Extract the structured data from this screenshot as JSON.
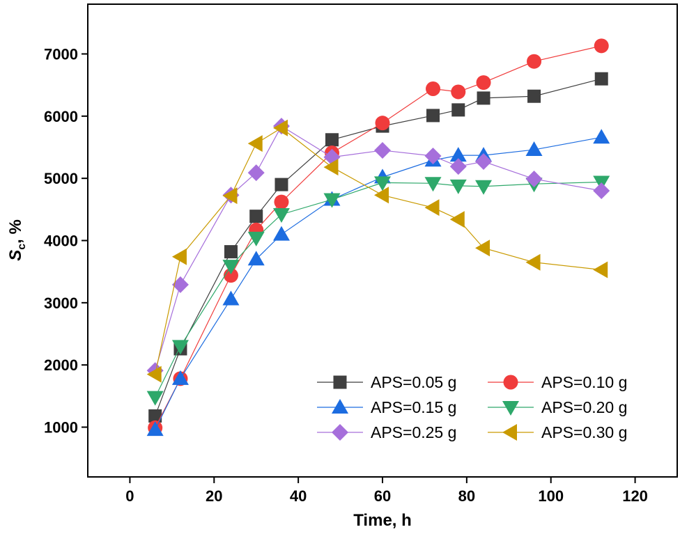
{
  "chart_data": {
    "type": "line",
    "xlabel": "Time, h",
    "ylabel_main": "S",
    "ylabel_sub": "c",
    "ylabel_suffix": ", %",
    "xlim": [
      -10,
      130
    ],
    "ylim": [
      200,
      7800
    ],
    "xticks": [
      0,
      20,
      40,
      60,
      80,
      100,
      120
    ],
    "yticks": [
      1000,
      2000,
      3000,
      4000,
      5000,
      6000,
      7000
    ],
    "grid": false,
    "legend_position": "bottom-right",
    "series": [
      {
        "name": "APS=0.05 g",
        "color": "#3f3f3f",
        "marker": "square",
        "x": [
          6,
          12,
          24,
          30,
          36,
          48,
          60,
          72,
          78,
          84,
          96,
          112
        ],
        "y": [
          1180,
          2260,
          3820,
          4390,
          4900,
          5620,
          5840,
          6010,
          6100,
          6290,
          6320,
          6600
        ]
      },
      {
        "name": "APS=0.10 g",
        "color": "#f03c3c",
        "marker": "circle",
        "x": [
          6,
          12,
          24,
          30,
          36,
          48,
          60,
          72,
          78,
          84,
          96,
          112
        ],
        "y": [
          990,
          1780,
          3440,
          4170,
          4620,
          5410,
          5890,
          6440,
          6390,
          6540,
          6880,
          7130
        ]
      },
      {
        "name": "APS=0.15 g",
        "color": "#1c6ce0",
        "marker": "triangle-up",
        "x": [
          6,
          12,
          24,
          30,
          36,
          48,
          60,
          72,
          78,
          84,
          96,
          112
        ],
        "y": [
          960,
          1780,
          3060,
          3700,
          4100,
          4660,
          5020,
          5290,
          5370,
          5370,
          5460,
          5660
        ]
      },
      {
        "name": "APS=0.20 g",
        "color": "#2ea86a",
        "marker": "triangle-down",
        "x": [
          6,
          12,
          24,
          30,
          36,
          48,
          60,
          72,
          78,
          84,
          96,
          112
        ],
        "y": [
          1480,
          2300,
          3590,
          4040,
          4420,
          4660,
          4930,
          4920,
          4880,
          4870,
          4910,
          4940
        ]
      },
      {
        "name": "APS=0.25 g",
        "color": "#a66fdb",
        "marker": "diamond",
        "x": [
          6,
          12,
          24,
          30,
          36,
          48,
          60,
          72,
          78,
          84,
          96,
          112
        ],
        "y": [
          1910,
          3290,
          4730,
          5090,
          5840,
          5340,
          5450,
          5360,
          5190,
          5270,
          4990,
          4800
        ]
      },
      {
        "name": "APS=0.30 g",
        "color": "#c99a00",
        "marker": "triangle-left",
        "x": [
          6,
          12,
          24,
          30,
          36,
          48,
          60,
          72,
          78,
          84,
          96,
          112
        ],
        "y": [
          1850,
          3740,
          4720,
          5560,
          5810,
          5180,
          4730,
          4530,
          4340,
          3880,
          3650,
          3530
        ]
      }
    ]
  }
}
